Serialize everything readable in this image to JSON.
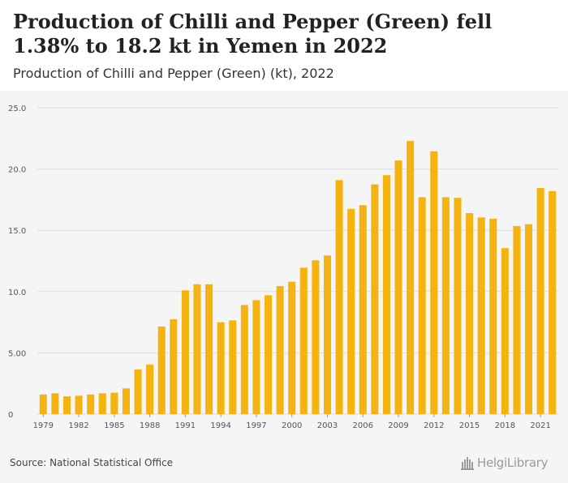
{
  "header": {
    "title": "Production of Chilli and Pepper (Green) fell 1.38% to 18.2 kt in Yemen in 2022",
    "subtitle": "Production of Chilli and Pepper (Green) (kt), 2022"
  },
  "footer": {
    "source": "Source: National Statistical Office",
    "logo_text": "HelgiLibrary"
  },
  "colors": {
    "bar": "#f5b312",
    "grid": "#dddddd",
    "axis_text": "#555555",
    "background": "#f5f5f5"
  },
  "chart_data": {
    "type": "bar",
    "categories": [
      "1979",
      "1980",
      "1981",
      "1982",
      "1983",
      "1984",
      "1985",
      "1986",
      "1987",
      "1988",
      "1989",
      "1990",
      "1991",
      "1992",
      "1993",
      "1994",
      "1995",
      "1996",
      "1997",
      "1998",
      "1999",
      "2000",
      "2001",
      "2002",
      "2003",
      "2004",
      "2005",
      "2006",
      "2007",
      "2008",
      "2009",
      "2010",
      "2011",
      "2012",
      "2013",
      "2014",
      "2015",
      "2016",
      "2017",
      "2018",
      "2019",
      "2020",
      "2021",
      "2022"
    ],
    "values": [
      1.6,
      1.7,
      1.45,
      1.5,
      1.6,
      1.7,
      1.75,
      2.1,
      3.65,
      4.05,
      7.15,
      7.75,
      10.1,
      10.6,
      10.6,
      7.5,
      7.65,
      8.9,
      9.3,
      9.7,
      10.45,
      10.8,
      11.95,
      12.55,
      12.95,
      19.1,
      16.75,
      17.05,
      18.75,
      19.5,
      20.7,
      22.3,
      17.7,
      21.45,
      17.7,
      17.65,
      16.4,
      16.05,
      15.95,
      13.55,
      15.35,
      15.5,
      18.45,
      18.2
    ],
    "tick_labels": [
      "1979",
      "1982",
      "1985",
      "1988",
      "1991",
      "1994",
      "1997",
      "2000",
      "2003",
      "2006",
      "2009",
      "2012",
      "2015",
      "2018",
      "2021"
    ],
    "yticks": [
      "0",
      "5.00",
      "10.0",
      "15.0",
      "20.0",
      "25.0"
    ],
    "ylim": [
      0,
      25
    ],
    "grid": true,
    "legend": false
  }
}
